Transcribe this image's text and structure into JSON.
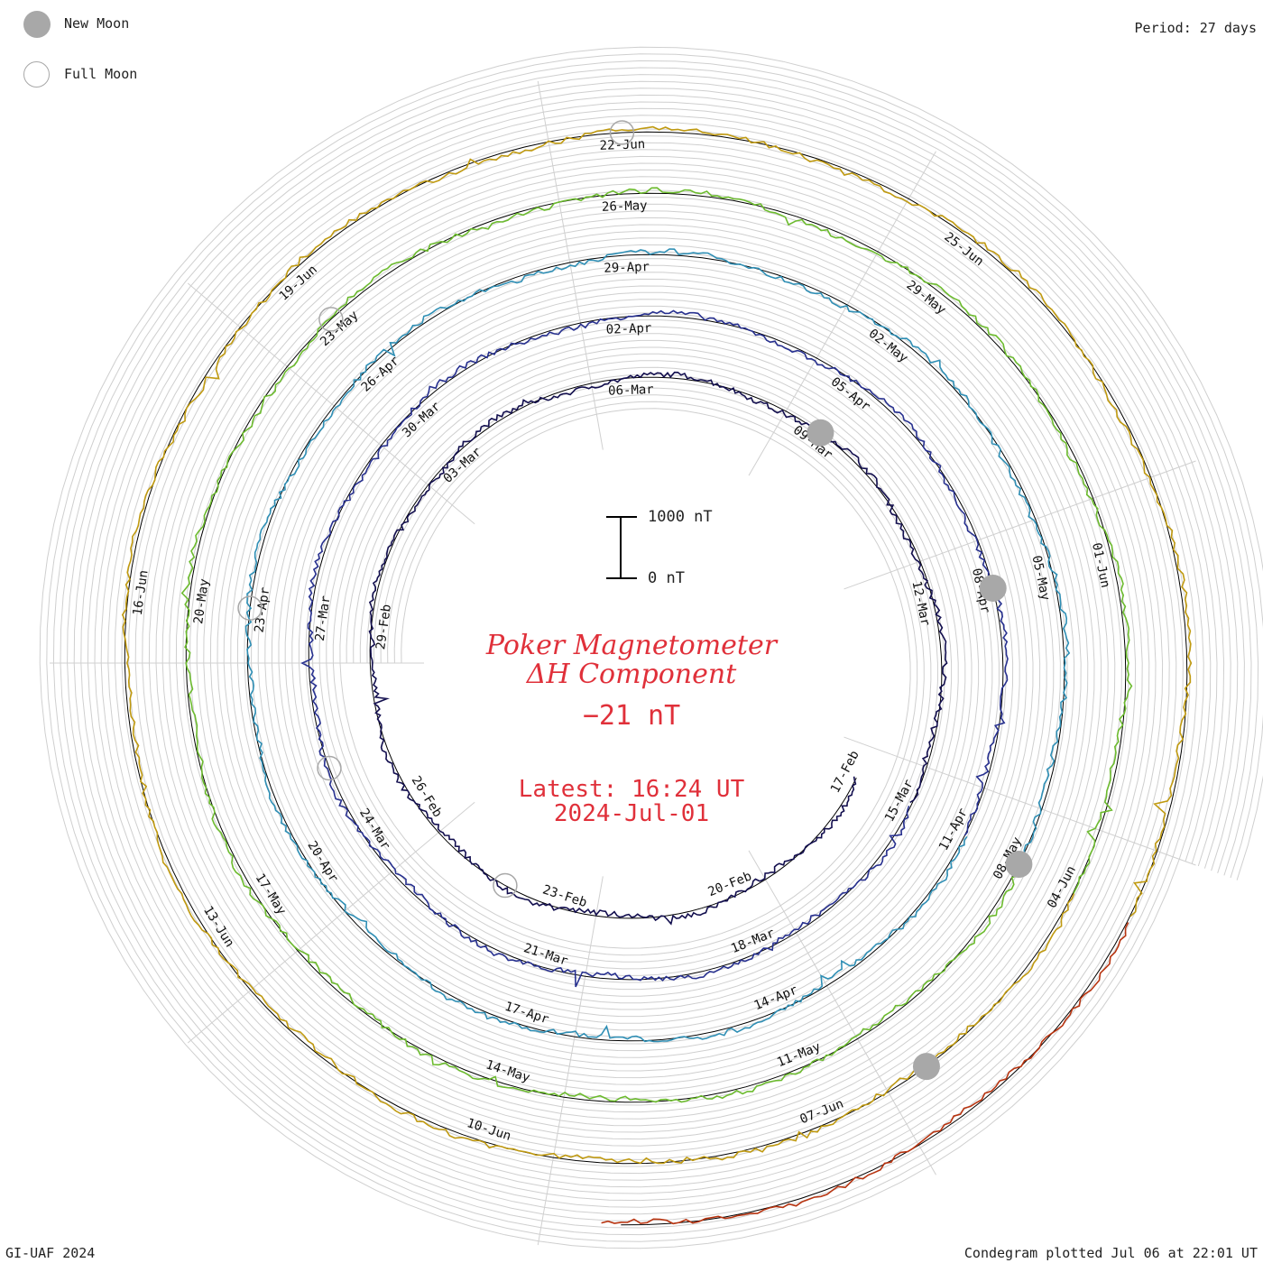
{
  "header": {
    "period": "Period: 27 days"
  },
  "legend": {
    "new_moon": {
      "label": "New Moon",
      "color": "#a8a8a8"
    },
    "full_moon": {
      "label": "Full Moon",
      "color": "#a8a8a8"
    }
  },
  "title": {
    "line1": "Poker Magnetometer",
    "line2": "ΔH Component",
    "value": "−21 nT",
    "latest_line1": "Latest: 16:24 UT",
    "latest_line2": "2024-Jul-01",
    "color": "#e0303a"
  },
  "scale_bar": {
    "top_label": "1000 nT",
    "bottom_label": "0 nT"
  },
  "footer": {
    "credit": "GI-UAF 2024",
    "plotted": "Condegram plotted Jul 06 at 22:01 UT"
  },
  "rotations": [
    {
      "color": "#120e4e",
      "labels": [
        "17-Feb",
        "20-Feb",
        "23-Feb",
        "26-Feb",
        "29-Feb",
        "03-Mar",
        "06-Mar",
        "09-Mar",
        "12-Mar"
      ]
    },
    {
      "color": "#27308f",
      "labels": [
        "15-Mar",
        "18-Mar",
        "21-Mar",
        "24-Mar",
        "27-Mar",
        "30-Mar",
        "02-Apr",
        "05-Apr",
        "08-Apr"
      ]
    },
    {
      "color": "#2f8fb5",
      "labels": [
        "11-Apr",
        "14-Apr",
        "17-Apr",
        "20-Apr",
        "23-Apr",
        "26-Apr",
        "29-Apr",
        "02-May",
        "05-May"
      ]
    },
    {
      "color": "#6cbb2e",
      "labels": [
        "08-May",
        "11-May",
        "14-May",
        "17-May",
        "20-May",
        "23-May",
        "26-May",
        "29-May",
        "01-Jun"
      ]
    },
    {
      "color": "#c09a10",
      "labels": [
        "04-Jun",
        "07-Jun",
        "10-Jun",
        "13-Jun",
        "16-Jun",
        "19-Jun",
        "22-Jun",
        "25-Jun"
      ]
    },
    {
      "color": "#b83410",
      "labels": []
    }
  ],
  "new_moons": [
    "09-Mar",
    "08-Apr",
    "08-May",
    "06-Jun"
  ],
  "full_moons": [
    "24-Feb",
    "25-Mar",
    "23-Apr",
    "23-May",
    "22-Jun"
  ]
}
